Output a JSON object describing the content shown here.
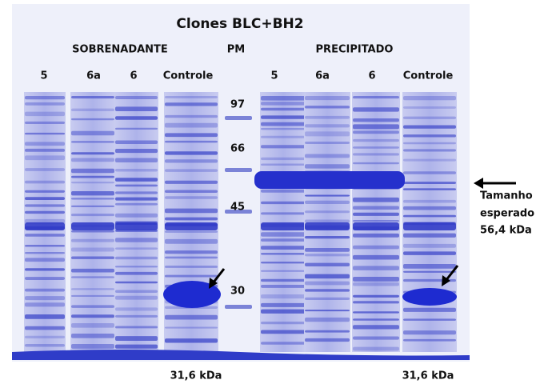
{
  "title": "Clones BLC+BH2",
  "groups": [
    {
      "label": "SOBRENADANTE",
      "lanes": [
        "5",
        "6a",
        "6",
        "Controle"
      ]
    },
    {
      "label": "PRECIPITADO",
      "lanes": [
        "5",
        "6a",
        "6",
        "Controle"
      ]
    }
  ],
  "marker": {
    "label": "PM",
    "sizes": [
      97,
      66,
      45,
      30
    ]
  },
  "annotation": {
    "lines": [
      "Tamanho",
      "esperado",
      "56,4 kDa"
    ]
  },
  "footnotes": [
    "31,6 kDa",
    "31,6 kDa"
  ]
}
